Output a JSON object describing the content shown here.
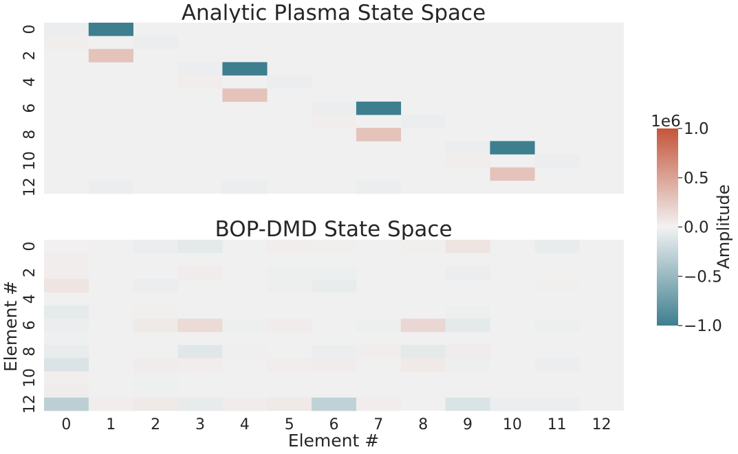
{
  "chart_data": [
    {
      "type": "heatmap",
      "title": "Analytic Plasma State Space",
      "xlabel": "",
      "ylabel": "",
      "n_rows": 13,
      "n_cols": 13,
      "y_tick_labels": [
        "0",
        "2",
        "4",
        "6",
        "8",
        "10",
        "12"
      ],
      "x_tick_labels": [],
      "vmin": -1000000,
      "vmax": 1000000,
      "matrix": [
        [
          -40000,
          -1000000,
          0,
          0,
          0,
          0,
          0,
          0,
          0,
          0,
          0,
          0,
          0
        ],
        [
          30000,
          0,
          -40000,
          0,
          0,
          0,
          0,
          0,
          0,
          0,
          0,
          0,
          0
        ],
        [
          0,
          300000,
          0,
          0,
          0,
          0,
          0,
          0,
          0,
          0,
          0,
          0,
          0
        ],
        [
          0,
          0,
          0,
          -40000,
          -1000000,
          0,
          0,
          0,
          0,
          0,
          0,
          0,
          0
        ],
        [
          0,
          0,
          0,
          30000,
          0,
          -40000,
          0,
          0,
          0,
          0,
          0,
          0,
          0
        ],
        [
          0,
          0,
          0,
          0,
          300000,
          0,
          0,
          0,
          0,
          0,
          0,
          0,
          0
        ],
        [
          0,
          0,
          0,
          0,
          0,
          0,
          -40000,
          -1000000,
          0,
          0,
          0,
          0,
          0
        ],
        [
          0,
          0,
          0,
          0,
          0,
          0,
          30000,
          0,
          -40000,
          0,
          0,
          0,
          0
        ],
        [
          0,
          0,
          0,
          0,
          0,
          0,
          0,
          300000,
          0,
          0,
          0,
          0,
          0
        ],
        [
          0,
          0,
          0,
          0,
          0,
          0,
          0,
          0,
          0,
          -40000,
          -1000000,
          0,
          0
        ],
        [
          0,
          0,
          0,
          0,
          0,
          0,
          0,
          0,
          0,
          30000,
          0,
          -40000,
          0
        ],
        [
          0,
          0,
          0,
          0,
          0,
          0,
          0,
          0,
          0,
          0,
          300000,
          0,
          0
        ],
        [
          0,
          -40000,
          0,
          0,
          -40000,
          0,
          0,
          -40000,
          0,
          0,
          0,
          0,
          0
        ]
      ]
    },
    {
      "type": "heatmap",
      "title": "BOP-DMD State Space",
      "xlabel": "Element #",
      "ylabel": "Element #",
      "n_rows": 13,
      "n_cols": 13,
      "y_tick_labels": [
        "0",
        "2",
        "4",
        "6",
        "8",
        "10",
        "12"
      ],
      "x_tick_labels": [
        "0",
        "1",
        "2",
        "3",
        "4",
        "5",
        "6",
        "7",
        "8",
        "9",
        "10",
        "11",
        "12"
      ],
      "vmin": -1000000,
      "vmax": 1000000,
      "matrix": [
        [
          10000,
          0,
          -40000,
          -80000,
          0,
          30000,
          20000,
          0,
          20000,
          80000,
          0,
          -50000,
          0
        ],
        [
          30000,
          0,
          0,
          0,
          0,
          0,
          0,
          0,
          0,
          0,
          0,
          0,
          0
        ],
        [
          30000,
          0,
          0,
          40000,
          0,
          -30000,
          -30000,
          0,
          0,
          -40000,
          0,
          0,
          0
        ],
        [
          90000,
          0,
          -40000,
          0,
          0,
          -30000,
          -50000,
          0,
          0,
          0,
          0,
          20000,
          0
        ],
        [
          0,
          0,
          0,
          0,
          0,
          0,
          0,
          0,
          0,
          0,
          0,
          0,
          0
        ],
        [
          -70000,
          0,
          20000,
          0,
          0,
          0,
          0,
          0,
          0,
          -30000,
          0,
          0,
          0
        ],
        [
          -40000,
          0,
          60000,
          150000,
          -30000,
          40000,
          0,
          -30000,
          170000,
          -80000,
          0,
          -30000,
          0
        ],
        [
          -20000,
          0,
          0,
          0,
          0,
          0,
          0,
          0,
          0,
          0,
          0,
          0,
          0
        ],
        [
          -50000,
          0,
          0,
          -100000,
          20000,
          0,
          -40000,
          30000,
          -80000,
          40000,
          0,
          0,
          0
        ],
        [
          -130000,
          0,
          40000,
          30000,
          0,
          30000,
          40000,
          0,
          60000,
          -30000,
          0,
          -40000,
          0
        ],
        [
          20000,
          0,
          -20000,
          0,
          0,
          0,
          0,
          0,
          0,
          0,
          0,
          0,
          0
        ],
        [
          40000,
          0,
          -20000,
          0,
          0,
          0,
          0,
          0,
          0,
          0,
          0,
          0,
          0
        ],
        [
          -300000,
          30000,
          60000,
          -60000,
          40000,
          60000,
          -280000,
          30000,
          0,
          -130000,
          -40000,
          -40000,
          0
        ]
      ]
    }
  ],
  "colorbar": {
    "label": "Amplitude",
    "exponent_label": "1e6",
    "tick_labels": [
      "1.0",
      "0.5",
      "0.0",
      "−0.5",
      "−1.0"
    ],
    "tick_values": [
      1.0,
      0.5,
      0.0,
      -0.5,
      -1.0
    ],
    "colors": {
      "negative": "#3d7f8f",
      "zero": "#f2f2f2",
      "positive": "#c4553a",
      "background": "#f0f0f0"
    }
  }
}
